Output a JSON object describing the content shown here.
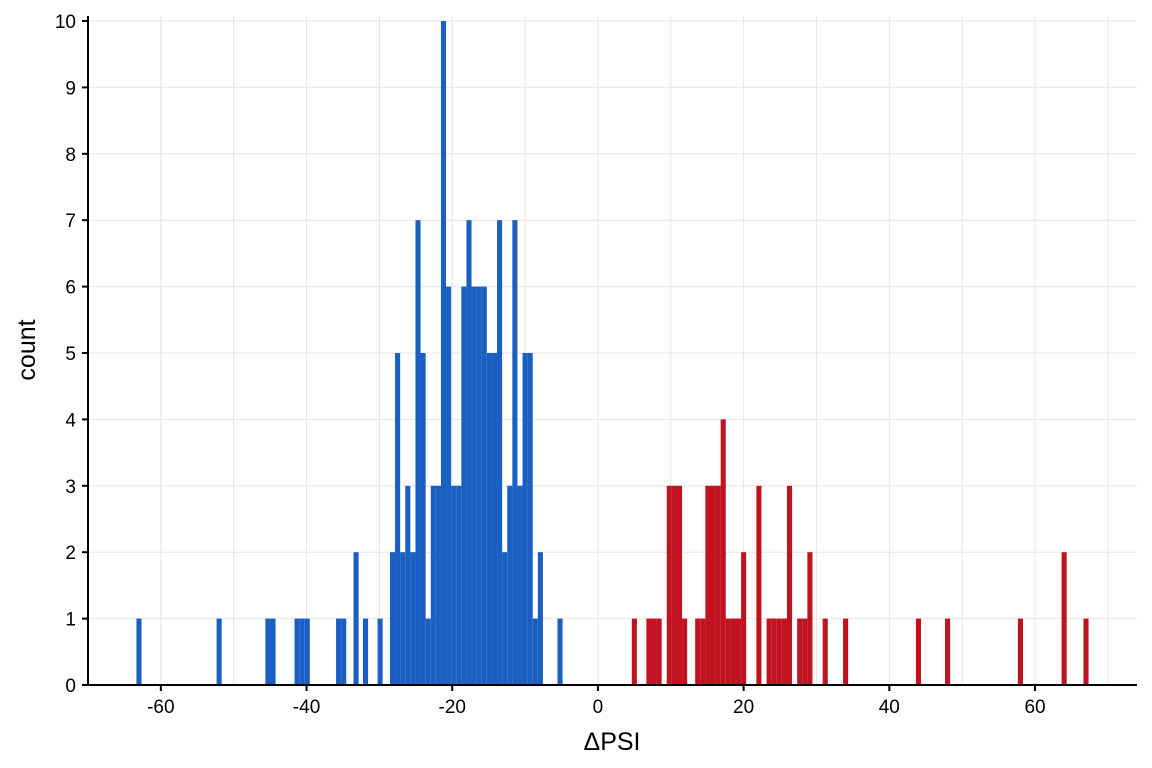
{
  "chart_data": {
    "type": "bar",
    "xlabel": "ΔPSI",
    "ylabel": "count",
    "xlim": [
      -70,
      74
    ],
    "ylim": [
      0,
      10
    ],
    "x_ticks": [
      -60,
      -40,
      -20,
      0,
      20,
      40,
      60
    ],
    "x_tick_labels": [
      "-60",
      "-40",
      "-20",
      "0",
      "20",
      "40",
      "60"
    ],
    "y_ticks": [
      0,
      1,
      2,
      3,
      4,
      5,
      6,
      7,
      8,
      9,
      10
    ],
    "y_tick_labels": [
      "0",
      "1",
      "2",
      "3",
      "4",
      "5",
      "6",
      "7",
      "8",
      "9",
      "10"
    ],
    "bin_width": 0.7,
    "grid": true,
    "series": [
      {
        "color": "#1a5fc2",
        "bins": [
          {
            "x": -63,
            "count": 1
          },
          {
            "x": -52,
            "count": 1
          },
          {
            "x": -45.3,
            "count": 1
          },
          {
            "x": -44.6,
            "count": 1
          },
          {
            "x": -41.3,
            "count": 1
          },
          {
            "x": -40.6,
            "count": 1
          },
          {
            "x": -39.9,
            "count": 1
          },
          {
            "x": -35.6,
            "count": 1
          },
          {
            "x": -34.9,
            "count": 1
          },
          {
            "x": -33.2,
            "count": 2
          },
          {
            "x": -31.9,
            "count": 1
          },
          {
            "x": -29.9,
            "count": 1
          },
          {
            "x": -28.2,
            "count": 2
          },
          {
            "x": -27.5,
            "count": 5
          },
          {
            "x": -26.8,
            "count": 2
          },
          {
            "x": -26.1,
            "count": 3
          },
          {
            "x": -25.4,
            "count": 2
          },
          {
            "x": -24.7,
            "count": 7
          },
          {
            "x": -24.0,
            "count": 5
          },
          {
            "x": -23.3,
            "count": 1
          },
          {
            "x": -22.6,
            "count": 3
          },
          {
            "x": -21.9,
            "count": 3
          },
          {
            "x": -21.2,
            "count": 10
          },
          {
            "x": -20.5,
            "count": 6
          },
          {
            "x": -19.8,
            "count": 3
          },
          {
            "x": -19.1,
            "count": 3
          },
          {
            "x": -18.4,
            "count": 6
          },
          {
            "x": -17.7,
            "count": 7
          },
          {
            "x": -17.0,
            "count": 6
          },
          {
            "x": -16.3,
            "count": 6
          },
          {
            "x": -15.6,
            "count": 6
          },
          {
            "x": -14.9,
            "count": 5
          },
          {
            "x": -14.2,
            "count": 5
          },
          {
            "x": -13.5,
            "count": 7
          },
          {
            "x": -12.8,
            "count": 2
          },
          {
            "x": -12.1,
            "count": 3
          },
          {
            "x": -11.4,
            "count": 7
          },
          {
            "x": -10.7,
            "count": 3
          },
          {
            "x": -10.0,
            "count": 5
          },
          {
            "x": -9.3,
            "count": 5
          },
          {
            "x": -8.6,
            "count": 1
          },
          {
            "x": -7.9,
            "count": 2
          },
          {
            "x": -5.2,
            "count": 1
          }
        ]
      },
      {
        "color": "#c1121f",
        "bins": [
          {
            "x": 5.0,
            "count": 1
          },
          {
            "x": 7.0,
            "count": 1
          },
          {
            "x": 7.7,
            "count": 1
          },
          {
            "x": 8.4,
            "count": 1
          },
          {
            "x": 9.8,
            "count": 3
          },
          {
            "x": 10.5,
            "count": 3
          },
          {
            "x": 11.2,
            "count": 3
          },
          {
            "x": 11.9,
            "count": 1
          },
          {
            "x": 13.7,
            "count": 1
          },
          {
            "x": 14.4,
            "count": 1
          },
          {
            "x": 15.1,
            "count": 3
          },
          {
            "x": 15.8,
            "count": 3
          },
          {
            "x": 16.5,
            "count": 3
          },
          {
            "x": 17.2,
            "count": 4
          },
          {
            "x": 17.9,
            "count": 1
          },
          {
            "x": 18.6,
            "count": 1
          },
          {
            "x": 19.3,
            "count": 1
          },
          {
            "x": 20.0,
            "count": 2
          },
          {
            "x": 22.1,
            "count": 3
          },
          {
            "x": 23.5,
            "count": 1
          },
          {
            "x": 24.2,
            "count": 1
          },
          {
            "x": 24.9,
            "count": 1
          },
          {
            "x": 25.6,
            "count": 1
          },
          {
            "x": 26.3,
            "count": 3
          },
          {
            "x": 27.7,
            "count": 1
          },
          {
            "x": 28.4,
            "count": 1
          },
          {
            "x": 29.1,
            "count": 2
          },
          {
            "x": 31.2,
            "count": 1
          },
          {
            "x": 34.0,
            "count": 1
          },
          {
            "x": 44.0,
            "count": 1
          },
          {
            "x": 48.0,
            "count": 1
          },
          {
            "x": 58.0,
            "count": 1
          },
          {
            "x": 64.0,
            "count": 2
          },
          {
            "x": 67.0,
            "count": 1
          }
        ]
      }
    ]
  }
}
